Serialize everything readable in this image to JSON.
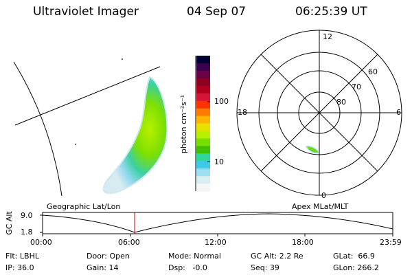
{
  "header": {
    "instrument": "Ultraviolet Imager",
    "date": "04 Sep 07",
    "time": "06:25:39 UT"
  },
  "colorbar": {
    "unit_label": "photon cm⁻²s⁻¹",
    "ticks": [
      "100",
      "10"
    ],
    "colors": [
      "#000033",
      "#3a0050",
      "#6a0046",
      "#8c0022",
      "#b0001e",
      "#d6143a",
      "#ff3300",
      "#ff7a00",
      "#ffb300",
      "#e8e000",
      "#b8f000",
      "#78e000",
      "#40c000",
      "#2fd89a",
      "#40c8e8",
      "#9ae0f0",
      "#d8eef2",
      "#f4f6f6"
    ]
  },
  "polar": {
    "labels": {
      "top": "12",
      "bottom": "0",
      "left": "18",
      "right": "6"
    },
    "lat_labels": [
      "60",
      "70",
      "80"
    ]
  },
  "timeline": {
    "left_title": "Geographic Lat/Lon",
    "right_title": "Apex MLat/MLT",
    "y_label": "GC Alt",
    "y_ticks": [
      "9.0",
      "1.8"
    ],
    "x_ticks": [
      "00:00",
      "06:00",
      "12:00",
      "18:00",
      "23:59"
    ],
    "marker_color": "#cc0000"
  },
  "status": {
    "flt": "Flt: LBHL",
    "ip": "IP: 36.0",
    "door": "Door: Open",
    "gain": "Gain: 14",
    "mode": "Mode: Normal",
    "dsp": "Dsp:   -0.0",
    "gcalt": "GC Alt: 2.2 Re",
    "seq": "Seq: 39",
    "glat": "GLat:  66.9",
    "glon": "GLon: 266.2"
  }
}
